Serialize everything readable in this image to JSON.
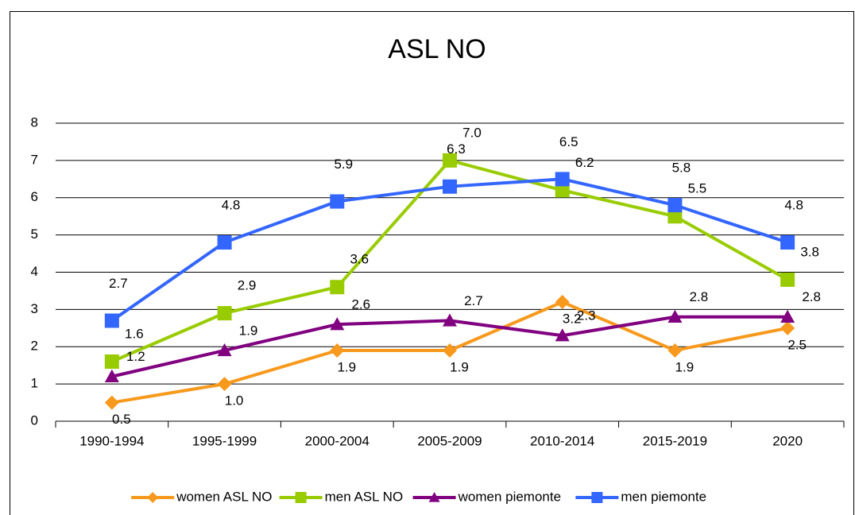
{
  "chart_data": {
    "type": "line",
    "title": "ASL NO",
    "categories": [
      "1990-1994",
      "1995-1999",
      "2000-2004",
      "2005-2009",
      "2010-2014",
      "2015-2019",
      "2020"
    ],
    "series": [
      {
        "name": "women ASL NO",
        "color": "#f7991c",
        "marker": "diamond",
        "values": [
          0.5,
          1.0,
          1.9,
          1.9,
          3.2,
          1.9,
          2.5
        ],
        "value_labels": [
          "0.5",
          "1.0",
          "1.9",
          "1.9",
          "3.2",
          "1.9",
          "2.5"
        ]
      },
      {
        "name": "men ASL NO",
        "color": "#99cc00",
        "marker": "square",
        "values": [
          1.6,
          2.9,
          3.6,
          7.0,
          6.2,
          5.5,
          3.8
        ],
        "value_labels": [
          "1.6",
          "2.9",
          "3.6",
          "7.0",
          "6.2",
          "5.5",
          "3.8"
        ]
      },
      {
        "name": "women piemonte",
        "color": "#800080",
        "marker": "triangle",
        "values": [
          1.2,
          1.9,
          2.6,
          2.7,
          2.3,
          2.8,
          2.8
        ],
        "value_labels": [
          "1.2",
          "1.9",
          "2.6",
          "2.7",
          "2.3",
          "2.8",
          "2.8"
        ]
      },
      {
        "name": "men piemonte",
        "color": "#3366ff",
        "marker": "square",
        "values": [
          2.7,
          4.8,
          5.9,
          6.3,
          6.5,
          5.8,
          4.8
        ],
        "value_labels": [
          "2.7",
          "4.8",
          "5.9",
          "6.3",
          "6.5",
          "5.8",
          "4.8"
        ]
      }
    ],
    "ylim": [
      0,
      8
    ],
    "yticks": [
      0,
      1,
      2,
      3,
      4,
      5,
      6,
      7,
      8
    ],
    "grid": true,
    "legend": "bottom"
  }
}
